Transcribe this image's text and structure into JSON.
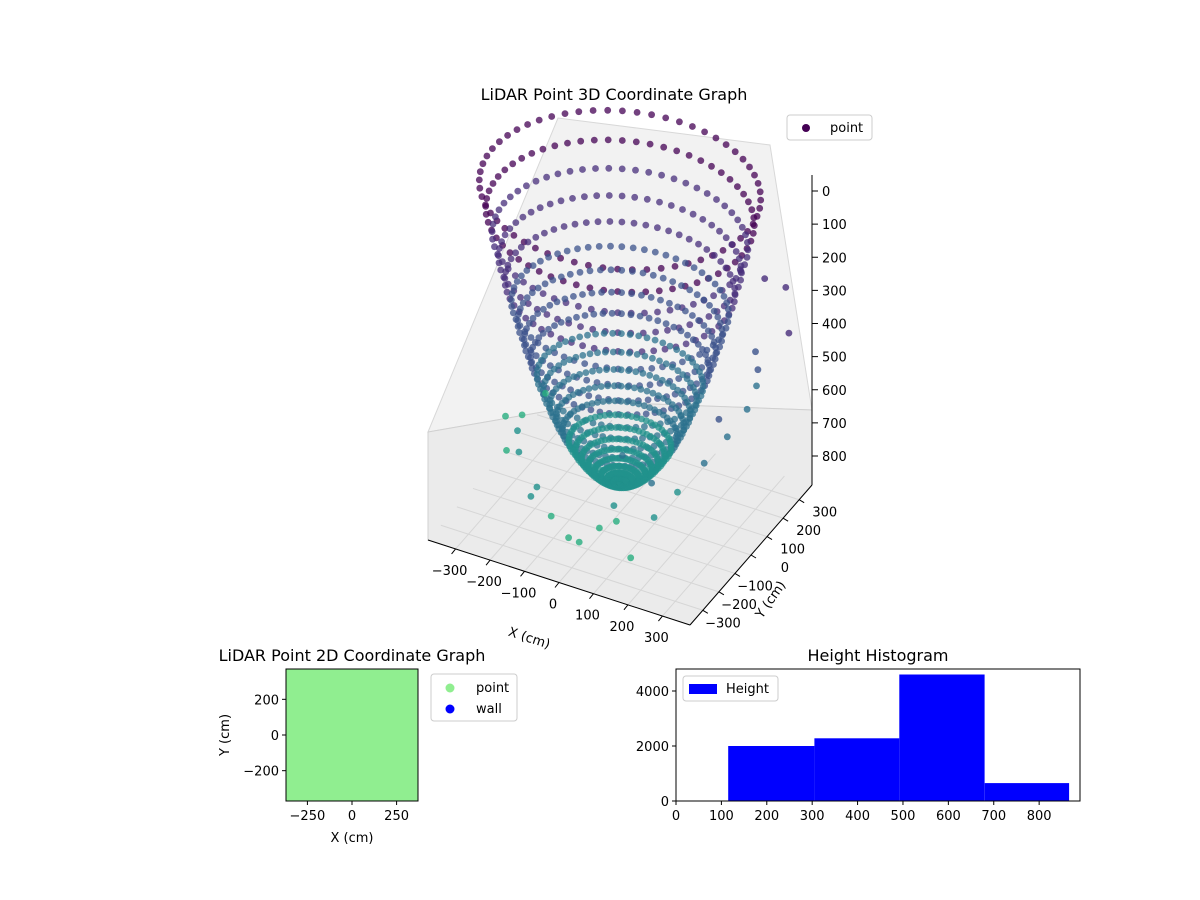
{
  "figure": {
    "background": "#ffffff"
  },
  "chart_data": [
    {
      "id": "lidar-3d",
      "type": "scatter",
      "projection": "3d",
      "title": "LiDAR Point 3D Coordinate Graph",
      "xlabel": "X (cm)",
      "ylabel": "Y (cm)",
      "zlabel": "",
      "xlim": [
        -380,
        380
      ],
      "ylim": [
        -380,
        380
      ],
      "zlim": [
        0,
        880
      ],
      "z_inverted": true,
      "x_ticks": [
        -300,
        -200,
        -100,
        0,
        100,
        200,
        300
      ],
      "x_tick_labels": [
        "−300",
        "−200",
        "−100",
        "0",
        "100",
        "200",
        "300"
      ],
      "y_ticks": [
        -300,
        -200,
        -100,
        0,
        100,
        200,
        300
      ],
      "y_tick_labels": [
        "−300",
        "−200",
        "−100",
        "0",
        "100",
        "200",
        "300"
      ],
      "z_tick_labels": [
        "0",
        "100",
        "200",
        "300",
        "400",
        "500",
        "600",
        "700",
        "800"
      ],
      "legend": {
        "label": "point",
        "placement": "top-right",
        "color": "#440154"
      },
      "colormap": [
        "#440154",
        "#472d7b",
        "#3b528b",
        "#2c728e",
        "#21918c",
        "#28ae80",
        "#5ec962"
      ],
      "bowl": {
        "max_radius_cm": 370,
        "max_depth_cm": 780,
        "azimuth_lines": 60,
        "rings": 22
      },
      "scatter_points": [
        {
          "x": -340,
          "y": 120,
          "z": 780
        },
        {
          "x": -360,
          "y": 60,
          "z": 760
        },
        {
          "x": -300,
          "y": 180,
          "z": 740
        },
        {
          "x": -320,
          "y": -20,
          "z": 800
        },
        {
          "x": -260,
          "y": -80,
          "z": 700
        },
        {
          "x": -200,
          "y": -200,
          "z": 680
        },
        {
          "x": -120,
          "y": -260,
          "z": 720
        },
        {
          "x": -60,
          "y": -300,
          "z": 760
        },
        {
          "x": 0,
          "y": -320,
          "z": 790
        },
        {
          "x": 40,
          "y": -340,
          "z": 780
        },
        {
          "x": 80,
          "y": -300,
          "z": 750
        },
        {
          "x": 120,
          "y": -280,
          "z": 730
        },
        {
          "x": 180,
          "y": -320,
          "z": 790
        },
        {
          "x": 220,
          "y": -260,
          "z": 700
        },
        {
          "x": 260,
          "y": -200,
          "z": 650
        },
        {
          "x": 300,
          "y": -120,
          "z": 600
        },
        {
          "x": 330,
          "y": -40,
          "z": 560
        },
        {
          "x": 350,
          "y": 40,
          "z": 520
        },
        {
          "x": 340,
          "y": 120,
          "z": 500
        },
        {
          "x": 300,
          "y": 200,
          "z": 460
        },
        {
          "x": 380,
          "y": -200,
          "z": 420
        },
        {
          "x": 400,
          "y": 0,
          "z": 380
        },
        {
          "x": 420,
          "y": 150,
          "z": 350
        },
        {
          "x": 360,
          "y": 260,
          "z": 300
        },
        {
          "x": 250,
          "y": -340,
          "z": 560
        },
        {
          "x": 150,
          "y": -360,
          "z": 640
        },
        {
          "x": 200,
          "y": 320,
          "z": 330
        },
        {
          "x": 280,
          "y": 300,
          "z": 320
        },
        {
          "x": -100,
          "y": -340,
          "z": 700
        },
        {
          "x": 100,
          "y": -200,
          "z": 600
        }
      ]
    },
    {
      "id": "lidar-2d",
      "type": "scatter",
      "title": "LiDAR Point 2D Coordinate Graph",
      "xlabel": "X (cm)",
      "ylabel": "Y (cm)",
      "xlim": [
        -370,
        370
      ],
      "ylim": [
        -370,
        370
      ],
      "x_ticks": [
        -250,
        0,
        250
      ],
      "x_tick_labels": [
        "−250",
        "0",
        "250"
      ],
      "y_ticks": [
        200,
        0,
        -200
      ],
      "y_tick_labels": [
        "200",
        "0",
        "−200"
      ],
      "fill_color": "#90ee90",
      "legend": [
        {
          "label": "point",
          "color": "#90ee90"
        },
        {
          "label": "wall",
          "color": "#0000ff"
        }
      ],
      "legend_placement": "outside right"
    },
    {
      "id": "height-histogram",
      "type": "bar",
      "title": "Height Histogram",
      "xlabel": "",
      "ylabel": "",
      "xlim": [
        0,
        890
      ],
      "ylim": [
        0,
        4800
      ],
      "x_ticks": [
        0,
        100,
        200,
        300,
        400,
        500,
        600,
        700,
        800
      ],
      "y_ticks": [
        0,
        2000,
        4000
      ],
      "bar_color": "#0000ff",
      "legend": {
        "label": "Height",
        "placement": "top-left"
      },
      "bins": [
        {
          "start": 115,
          "end": 305,
          "count": 2000
        },
        {
          "start": 305,
          "end": 492,
          "count": 2280
        },
        {
          "start": 492,
          "end": 680,
          "count": 4600
        },
        {
          "start": 680,
          "end": 866,
          "count": 650
        },
        {
          "start": 866,
          "end": 890,
          "count": 20
        }
      ]
    }
  ]
}
